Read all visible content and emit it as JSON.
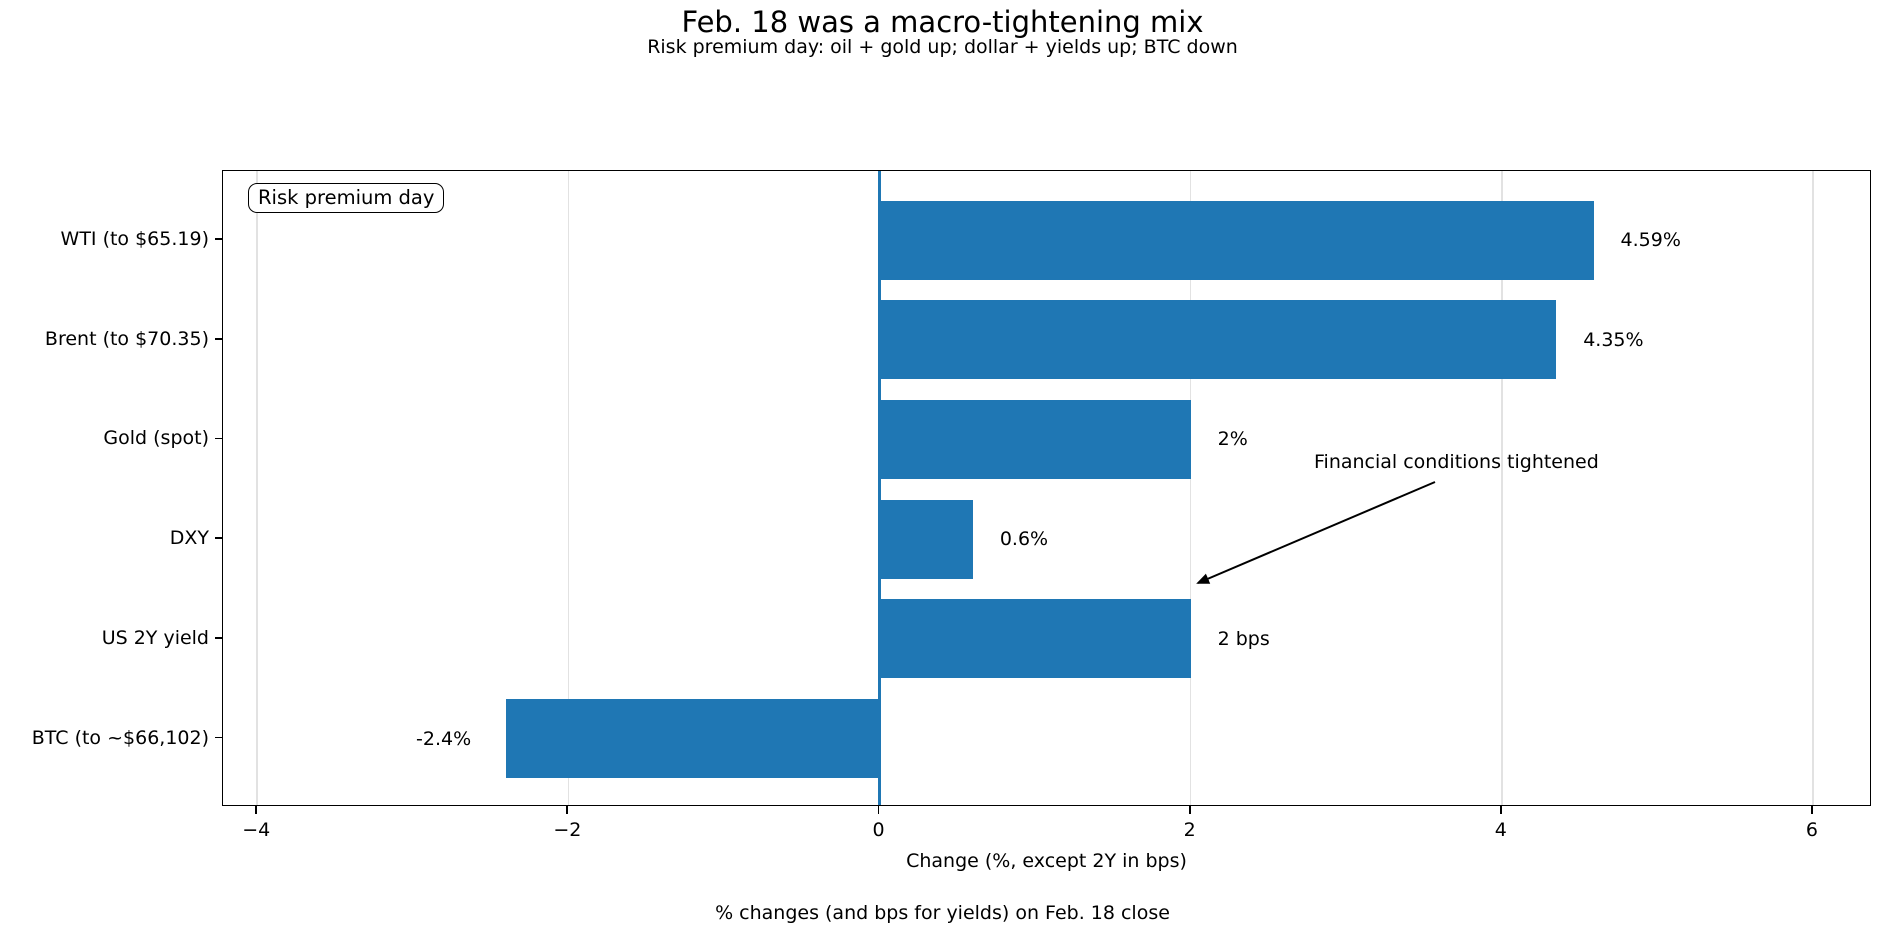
{
  "chart_data": {
    "type": "bar",
    "orientation": "horizontal",
    "title": "Feb. 18 was a macro-tightening mix",
    "subtitle": "Risk premium day: oil + gold up; dollar + yields up; BTC down",
    "categories": [
      "WTI (to $65.19)",
      "Brent (to $70.35)",
      "Gold (spot)",
      "DXY",
      "US 2Y yield",
      "BTC (to ~$66,102)"
    ],
    "values": [
      4.59,
      4.35,
      2,
      0.6,
      2,
      -2.4
    ],
    "bar_labels": [
      "4.59%",
      "4.35%",
      "2%",
      "0.6%",
      "2 bps",
      "-2.4%"
    ],
    "xlabel": "Change (%, except 2Y in bps)",
    "footnote": "% changes (and bps for yields) on Feb. 18 close",
    "legend_text": "Risk premium day",
    "annotation": {
      "text": "Financial conditions tightened"
    },
    "xticks": [
      -4,
      -2,
      0,
      2,
      4,
      6
    ],
    "xtick_labels": [
      "−4",
      "−2",
      "0",
      "2",
      "4",
      "6"
    ],
    "xlim": [
      -4.22,
      6.38
    ],
    "grid": true,
    "legend_position": "upper left",
    "bar_color": "#1f77b4",
    "zero_line_color": "#1f77b4"
  }
}
